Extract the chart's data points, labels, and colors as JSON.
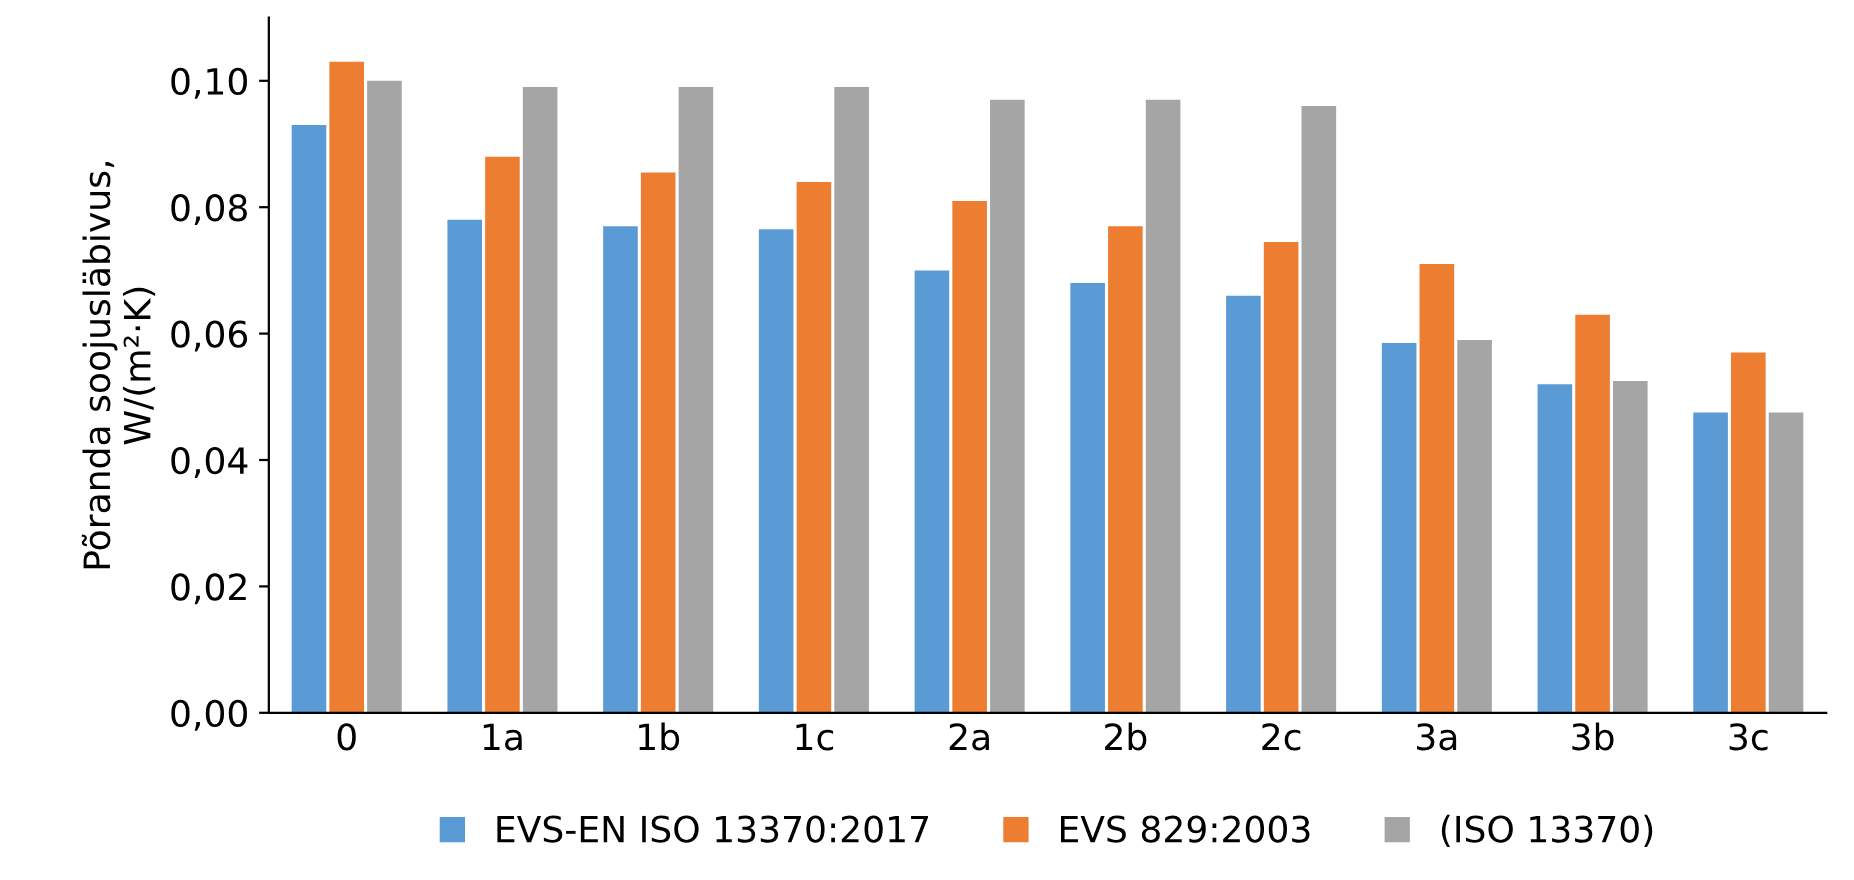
{
  "chart_data": {
    "type": "bar",
    "ylabel": "Põranda soojusläbivus,\nW/(m²·K)",
    "categories": [
      "0",
      "1a",
      "1b",
      "1c",
      "2a",
      "2b",
      "2c",
      "3a",
      "3b",
      "3c"
    ],
    "series": [
      {
        "name": "EVS-EN ISO 13370:2017",
        "color": "#5b9bd5",
        "values": [
          0.093,
          0.078,
          0.077,
          0.0765,
          0.07,
          0.068,
          0.066,
          0.0585,
          0.052,
          0.0475
        ]
      },
      {
        "name": "EVS 829:2003",
        "color": "#ed7d31",
        "values": [
          0.103,
          0.088,
          0.0855,
          0.084,
          0.081,
          0.077,
          0.0745,
          0.071,
          0.063,
          0.057
        ]
      },
      {
        "name": "(ISO 13370)",
        "color": "#a5a5a5",
        "values": [
          0.1,
          0.099,
          0.099,
          0.099,
          0.097,
          0.097,
          0.096,
          0.059,
          0.0525,
          0.0475
        ]
      }
    ],
    "ylim": [
      0,
      0.11
    ],
    "yticks": [
      {
        "value": 0,
        "label": "0,00"
      },
      {
        "value": 0.02,
        "label": "0,02"
      },
      {
        "value": 0.04,
        "label": "0,04"
      },
      {
        "value": 0.06,
        "label": "0,06"
      },
      {
        "value": 0.08,
        "label": "0,08"
      },
      {
        "value": 0.1,
        "label": "0,10"
      }
    ],
    "legend": "bottom",
    "grid": false
  }
}
